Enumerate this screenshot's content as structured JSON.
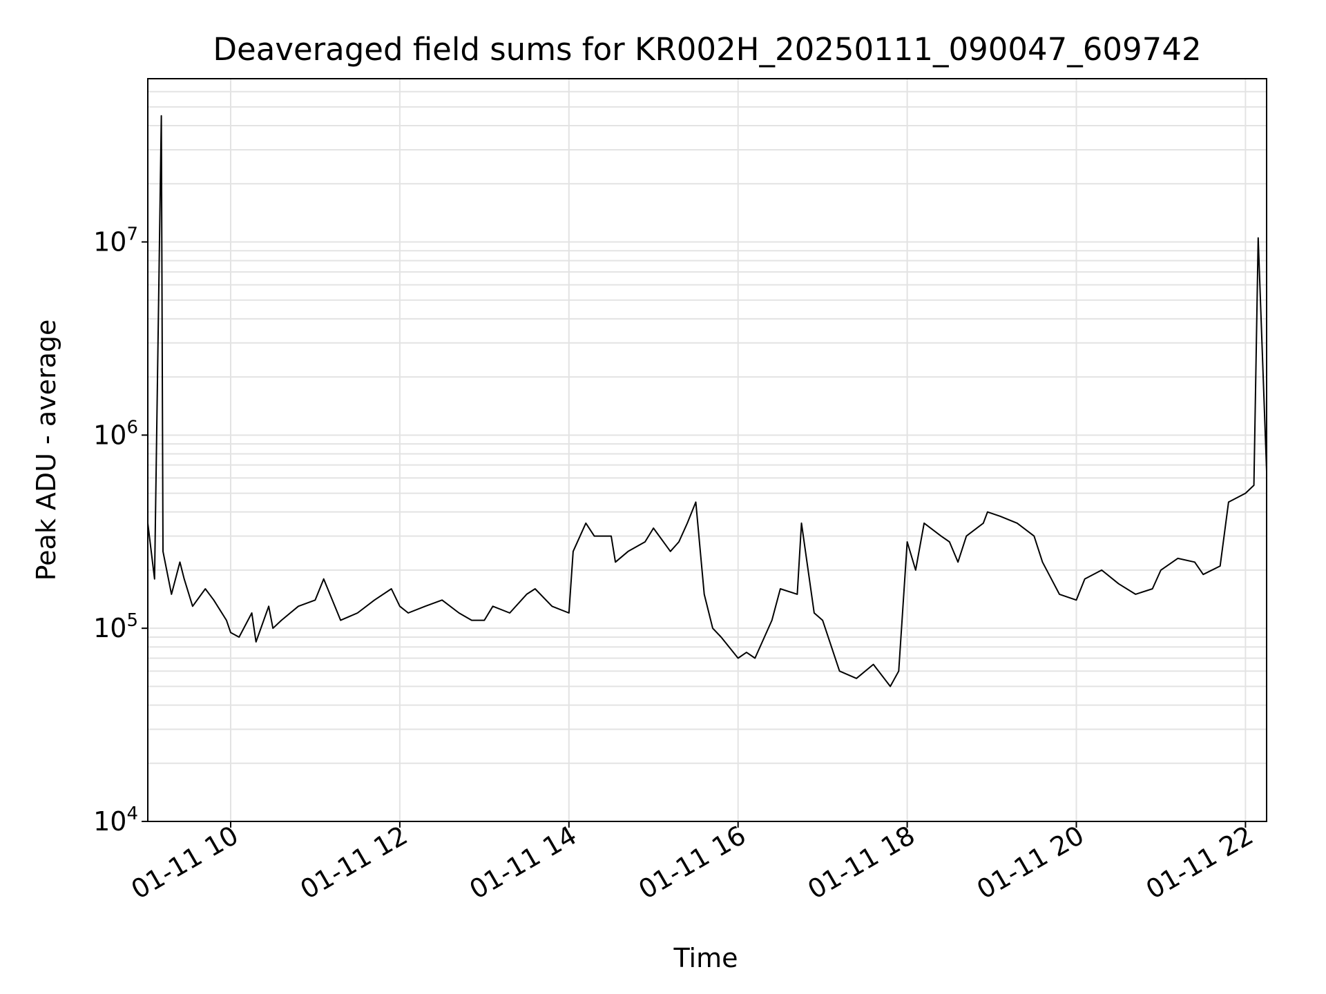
{
  "chart_data": {
    "type": "line",
    "title": "Deaveraged field sums for KR002H_20250111_090047_609742",
    "xlabel": "Time",
    "ylabel": "Peak ADU - average",
    "x_unit": "hour of 2025-01-11",
    "xlim": [
      9.02,
      22.25
    ],
    "yscale": "log",
    "ylim": [
      10000,
      70000000
    ],
    "grid": true,
    "line_color": "#000000",
    "x_ticks": [
      {
        "value": 10,
        "label": "01-11 10"
      },
      {
        "value": 12,
        "label": "01-11 12"
      },
      {
        "value": 14,
        "label": "01-11 14"
      },
      {
        "value": 16,
        "label": "01-11 16"
      },
      {
        "value": 18,
        "label": "01-11 18"
      },
      {
        "value": 20,
        "label": "01-11 20"
      },
      {
        "value": 22,
        "label": "01-11 22"
      }
    ],
    "y_ticks": [
      {
        "value": 10000,
        "base": "10",
        "exp": "4"
      },
      {
        "value": 100000,
        "base": "10",
        "exp": "5"
      },
      {
        "value": 1000000,
        "base": "10",
        "exp": "6"
      },
      {
        "value": 10000000,
        "base": "10",
        "exp": "7"
      }
    ],
    "series": [
      {
        "x": [
          9.02,
          9.1,
          9.18,
          9.2,
          9.3,
          9.4,
          9.45,
          9.55,
          9.7,
          9.8,
          9.95,
          10.0,
          10.1,
          10.25,
          10.3,
          10.45,
          10.5,
          10.6,
          10.8,
          11.0,
          11.1,
          11.3,
          11.5,
          11.7,
          11.9,
          12.0,
          12.1,
          12.3,
          12.5,
          12.7,
          12.85,
          13.0,
          13.1,
          13.3,
          13.5,
          13.6,
          13.8,
          14.0,
          14.05,
          14.2,
          14.3,
          14.5,
          14.55,
          14.7,
          14.9,
          15.0,
          15.2,
          15.3,
          15.4,
          15.5,
          15.6,
          15.7,
          15.8,
          16.0,
          16.1,
          16.2,
          16.4,
          16.5,
          16.7,
          16.75,
          16.9,
          17.0,
          17.2,
          17.4,
          17.6,
          17.8,
          17.9,
          18.0,
          18.1,
          18.2,
          18.4,
          18.5,
          18.6,
          18.7,
          18.9,
          18.95,
          19.1,
          19.3,
          19.5,
          19.6,
          19.8,
          20.0,
          20.1,
          20.3,
          20.5,
          20.7,
          20.9,
          21.0,
          21.2,
          21.4,
          21.5,
          21.7,
          21.8,
          22.0,
          22.1,
          22.15,
          22.25
        ],
        "y": [
          350000,
          180000,
          45000000,
          250000,
          150000,
          220000,
          180000,
          130000,
          160000,
          140000,
          110000,
          95000,
          90000,
          120000,
          85000,
          130000,
          100000,
          110000,
          130000,
          140000,
          180000,
          110000,
          120000,
          140000,
          160000,
          130000,
          120000,
          130000,
          140000,
          120000,
          110000,
          110000,
          130000,
          120000,
          150000,
          160000,
          130000,
          120000,
          250000,
          350000,
          300000,
          300000,
          220000,
          250000,
          280000,
          330000,
          250000,
          280000,
          350000,
          450000,
          150000,
          100000,
          90000,
          70000,
          75000,
          70000,
          110000,
          160000,
          150000,
          350000,
          120000,
          110000,
          60000,
          55000,
          65000,
          50000,
          60000,
          280000,
          200000,
          350000,
          300000,
          280000,
          220000,
          300000,
          350000,
          400000,
          380000,
          350000,
          300000,
          220000,
          150000,
          140000,
          180000,
          200000,
          170000,
          150000,
          160000,
          200000,
          230000,
          220000,
          190000,
          210000,
          450000,
          500000,
          550000,
          10500000,
          650000
        ]
      }
    ]
  }
}
